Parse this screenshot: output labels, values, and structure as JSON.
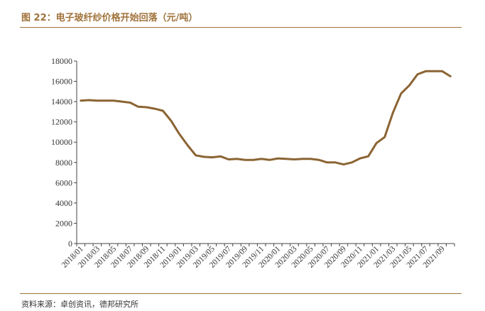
{
  "figure": {
    "title": "图 22：电子玻纤纱价格开始回落（元/吨）",
    "source": "资料来源：卓创资讯，德邦研究所"
  },
  "chart_data": {
    "type": "line",
    "title": "",
    "xlabel": "",
    "ylabel": "",
    "ylim": [
      0,
      18000
    ],
    "yticks": [
      0,
      2000,
      4000,
      6000,
      8000,
      10000,
      12000,
      14000,
      16000,
      18000
    ],
    "xtick_labels": [
      "2018/01",
      "2018/03",
      "2018/05",
      "2018/07",
      "2018/09",
      "2018/11",
      "2019/01",
      "2019/03",
      "2019/05",
      "2019/07",
      "2019/09",
      "2019/11",
      "2020/01",
      "2020/03",
      "2020/05",
      "2020/07",
      "2020/09",
      "2020/11",
      "2021/01",
      "2021/03",
      "2021/05",
      "2021/07",
      "2021/09"
    ],
    "grid": false,
    "legend": "none",
    "color": "#8b6433",
    "x": [
      "2018/01",
      "2018/02",
      "2018/03",
      "2018/04",
      "2018/05",
      "2018/06",
      "2018/07",
      "2018/08",
      "2018/09",
      "2018/10",
      "2018/11",
      "2018/12",
      "2019/01",
      "2019/02",
      "2019/03",
      "2019/04",
      "2019/05",
      "2019/06",
      "2019/07",
      "2019/08",
      "2019/09",
      "2019/10",
      "2019/11",
      "2019/12",
      "2020/01",
      "2020/02",
      "2020/03",
      "2020/04",
      "2020/05",
      "2020/06",
      "2020/07",
      "2020/08",
      "2020/09",
      "2020/10",
      "2020/11",
      "2020/12",
      "2021/01",
      "2021/02",
      "2021/03",
      "2021/04",
      "2021/05",
      "2021/06",
      "2021/07",
      "2021/08",
      "2021/09",
      "2021/10"
    ],
    "values": [
      14100,
      14150,
      14100,
      14100,
      14100,
      14000,
      13900,
      13500,
      13450,
      13300,
      13100,
      12100,
      10800,
      9700,
      8700,
      8550,
      8500,
      8600,
      8300,
      8350,
      8250,
      8250,
      8350,
      8250,
      8400,
      8350,
      8300,
      8350,
      8350,
      8250,
      8000,
      8000,
      7800,
      8000,
      8400,
      8600,
      9900,
      10500,
      12900,
      14800,
      15600,
      16700,
      17000,
      17000,
      17000,
      16500
    ]
  }
}
